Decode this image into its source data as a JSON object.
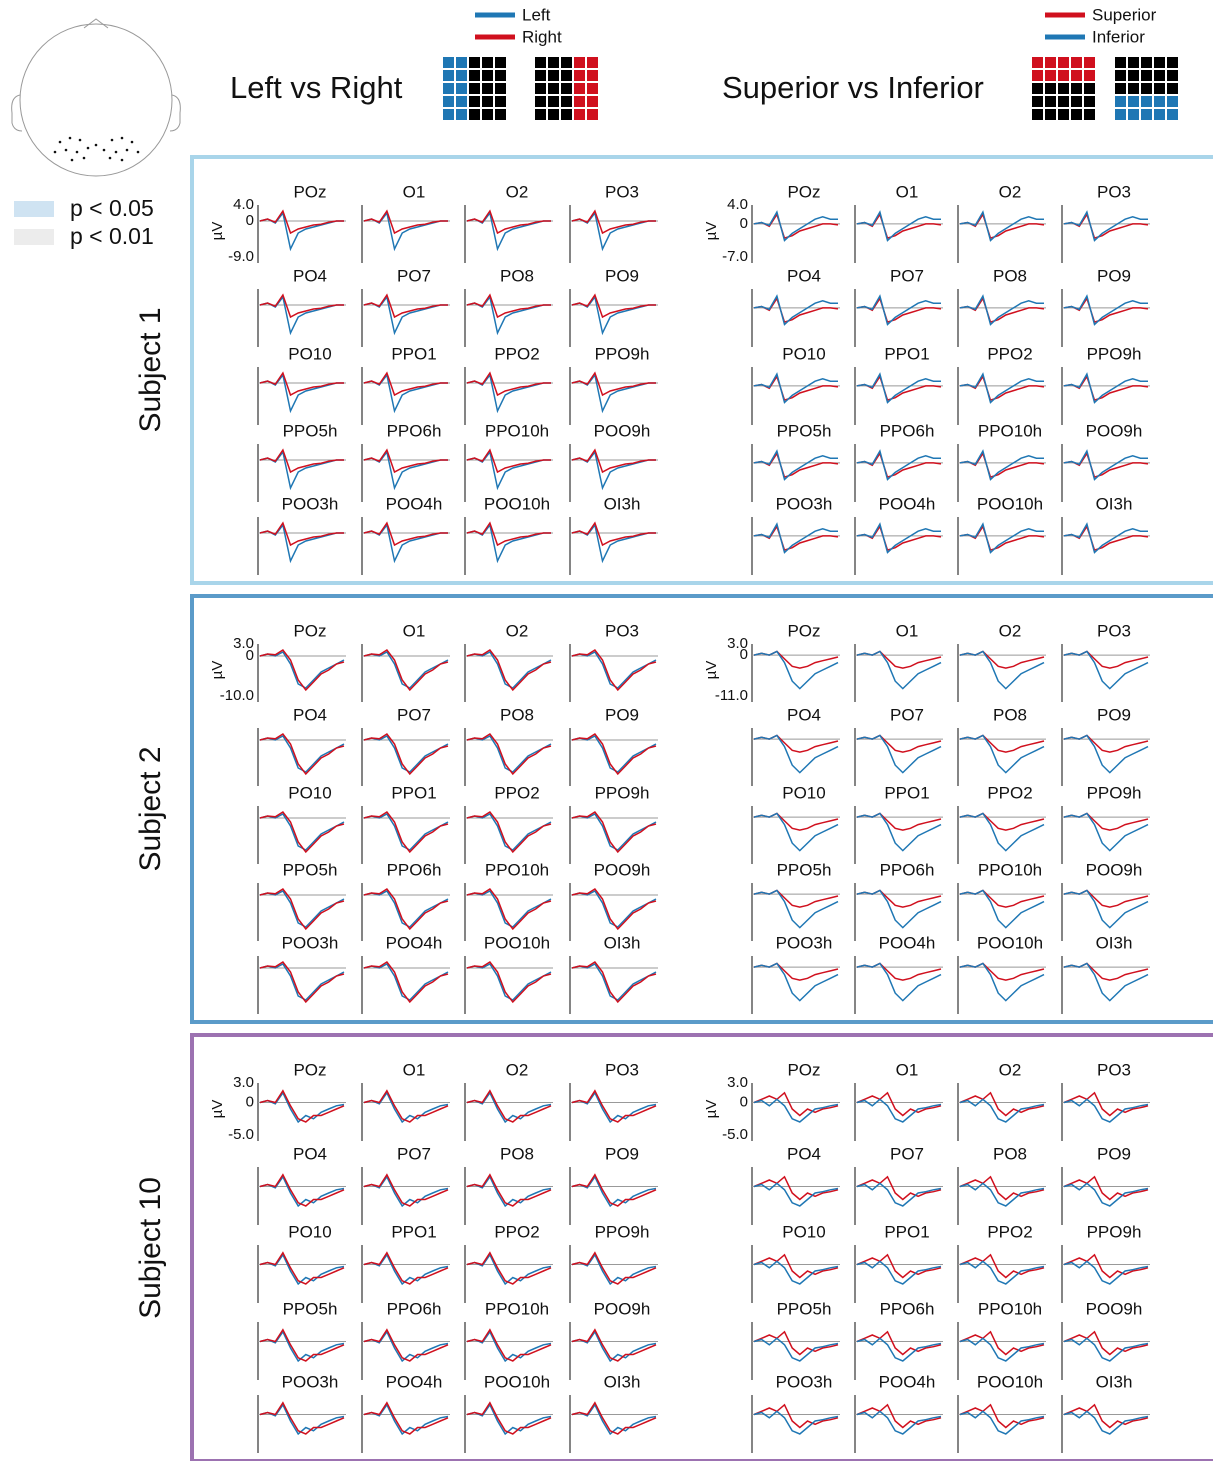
{
  "legend": {
    "p05": "p < 0.05",
    "p01": "p < 0.01"
  },
  "conditions": [
    {
      "title": "Left vs Right",
      "series": [
        {
          "name": "Left",
          "color": "#1f77b4"
        },
        {
          "name": "Right",
          "color": "#d0101e"
        }
      ]
    },
    {
      "title": "Superior vs Inferior",
      "series": [
        {
          "name": "Superior",
          "color": "#d0101e"
        },
        {
          "name": "Inferior",
          "color": "#1f77b4"
        }
      ]
    }
  ],
  "channels": [
    "POz",
    "O1",
    "O2",
    "PO3",
    "PO4",
    "PO7",
    "PO8",
    "PO9",
    "PO10",
    "PPO1",
    "PPO2",
    "PPO9h",
    "PPO5h",
    "PPO6h",
    "PPO10h",
    "POO9h",
    "POO3h",
    "POO4h",
    "POO10h",
    "OI3h"
  ],
  "subjects": [
    {
      "label": "Subject 1",
      "color": "#a9d5ea",
      "panels": [
        {
          "type": "line",
          "ylabel": "µV",
          "ylim": [
            -9,
            4
          ],
          "yticks": [
            {
              "value": 4,
              "label": "4.0"
            },
            0,
            {
              "value": -9,
              "label": "-9.0"
            }
          ],
          "series": [
            {
              "values": [
                0,
                0.5,
                -0.5,
                2,
                -7,
                -3,
                -2,
                -1.5,
                -1,
                -0.5,
                0,
                0
              ]
            },
            {
              "values": [
                0,
                0.5,
                -0.3,
                2.5,
                -3,
                -2,
                -1.5,
                -1,
                -0.8,
                -0.3,
                0,
                0
              ]
            }
          ]
        },
        {
          "type": "line",
          "ylabel": "µV",
          "ylim": [
            -7,
            4
          ],
          "yticks": [
            {
              "value": 4,
              "label": "4.0"
            },
            0,
            {
              "value": -7,
              "label": "-7.0"
            }
          ],
          "series": [
            {
              "values": [
                0,
                0.3,
                -0.5,
                2,
                -3,
                -2.5,
                -1.5,
                -1,
                -0.5,
                0,
                0,
                -0.2
              ]
            },
            {
              "values": [
                0,
                0.3,
                -0.3,
                2.5,
                -3.5,
                -2,
                -1,
                0,
                1,
                1.5,
                1,
                1
              ]
            }
          ]
        }
      ]
    },
    {
      "label": "Subject 2",
      "color": "#5b9bc9",
      "panels": [
        {
          "type": "line",
          "ylabel": "µV",
          "ylim": [
            -10,
            3
          ],
          "yticks": [
            {
              "value": 3,
              "label": "3.0"
            },
            0,
            {
              "value": -10,
              "label": "-10.0"
            }
          ],
          "series": [
            {
              "values": [
                0,
                0.5,
                0,
                1,
                -2,
                -7,
                -8,
                -6,
                -4,
                -3,
                -2,
                -1
              ]
            },
            {
              "values": [
                0,
                0.5,
                0.3,
                1.5,
                -1,
                -6,
                -8.5,
                -6.5,
                -4.5,
                -3.5,
                -2,
                -1.5
              ]
            }
          ]
        },
        {
          "type": "line",
          "ylabel": "µV",
          "ylim": [
            -11,
            3
          ],
          "yticks": [
            {
              "value": 3,
              "label": "3.0"
            },
            0,
            {
              "value": -11,
              "label": "-11.0"
            }
          ],
          "series": [
            {
              "values": [
                0,
                0.5,
                0,
                1,
                -1,
                -3,
                -3.5,
                -3,
                -2,
                -1.5,
                -1,
                -0.5
              ]
            },
            {
              "values": [
                0,
                0.5,
                0,
                1,
                -2,
                -7,
                -9,
                -7,
                -5,
                -4,
                -3,
                -2
              ]
            }
          ]
        }
      ]
    },
    {
      "label": "Subject 10",
      "color": "#9c72b1",
      "panels": [
        {
          "type": "line",
          "ylabel": "µV",
          "ylim": [
            -5,
            3
          ],
          "yticks": [
            {
              "value": 3,
              "label": "3.0"
            },
            0,
            {
              "value": -5,
              "label": "-5.0"
            }
          ],
          "series": [
            {
              "values": [
                0,
                0.3,
                -0.2,
                1.5,
                -1,
                -3,
                -2,
                -2.5,
                -1.5,
                -1,
                -0.5,
                -0.3
              ]
            },
            {
              "values": [
                0,
                0.3,
                0,
                1.8,
                -0.5,
                -2.5,
                -3,
                -2,
                -2,
                -1.5,
                -1,
                -0.5
              ]
            }
          ]
        },
        {
          "type": "line",
          "ylabel": "µV",
          "ylim": [
            -5,
            3
          ],
          "yticks": [
            {
              "value": 3,
              "label": "3.0"
            },
            0,
            {
              "value": -5,
              "label": "-5.0"
            }
          ],
          "series": [
            {
              "values": [
                0,
                0.5,
                1,
                0.5,
                1.5,
                -1,
                -2,
                -1,
                -1.5,
                -1,
                -0.8,
                -0.5
              ]
            },
            {
              "values": [
                0,
                0.3,
                -0.5,
                0.5,
                -0.5,
                -2.5,
                -3,
                -2,
                -1,
                -0.8,
                -0.5,
                -0.3
              ]
            }
          ]
        }
      ]
    }
  ]
}
